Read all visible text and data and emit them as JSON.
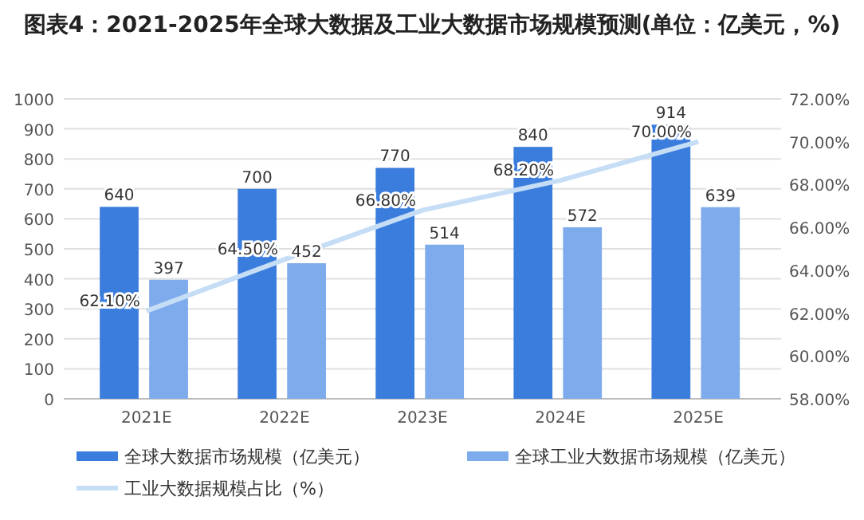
{
  "chart_data": {
    "type": "bar",
    "title": "图表4：2021-2025年全球大数据及工业大数据市场规模预测(单位：亿美元，%)",
    "categories": [
      "2021E",
      "2022E",
      "2023E",
      "2024E",
      "2025E"
    ],
    "series": [
      {
        "name": "全球大数据市场规模（亿美元）",
        "color": "#3b7ddd",
        "values": [
          640,
          700,
          770,
          840,
          914
        ],
        "value_labels": [
          "640",
          "700",
          "770",
          "840",
          "914"
        ]
      },
      {
        "name": "全球工业大数据市场规模（亿美元）",
        "color": "#7eabec",
        "values": [
          397,
          452,
          514,
          572,
          639
        ],
        "value_labels": [
          "397",
          "452",
          "514",
          "572",
          "639"
        ]
      },
      {
        "name": "工业大数据规模占比（%）",
        "type": "line",
        "axis": "y2",
        "color": "#c6ddf6",
        "values": [
          62.1,
          64.5,
          66.8,
          68.2,
          70.0
        ],
        "value_labels": [
          "62.10%",
          "64.50%",
          "66.80%",
          "68.20%",
          "70.00%"
        ]
      }
    ],
    "ylim": [
      0,
      1000
    ],
    "yticks": [
      0,
      100,
      200,
      300,
      400,
      500,
      600,
      700,
      800,
      900,
      1000
    ],
    "y2lim": [
      58,
      72
    ],
    "y2ticks": [
      {
        "value": 58,
        "label": "58.00%"
      },
      {
        "value": 60,
        "label": "60.00%"
      },
      {
        "value": 62,
        "label": "62.00%"
      },
      {
        "value": 64,
        "label": "64.00%"
      },
      {
        "value": 66,
        "label": "66.00%"
      },
      {
        "value": 68,
        "label": "68.00%"
      },
      {
        "value": 70,
        "label": "70.00%"
      },
      {
        "value": 72,
        "label": "72.00%"
      }
    ],
    "grid": "y",
    "legend": "bottom"
  }
}
